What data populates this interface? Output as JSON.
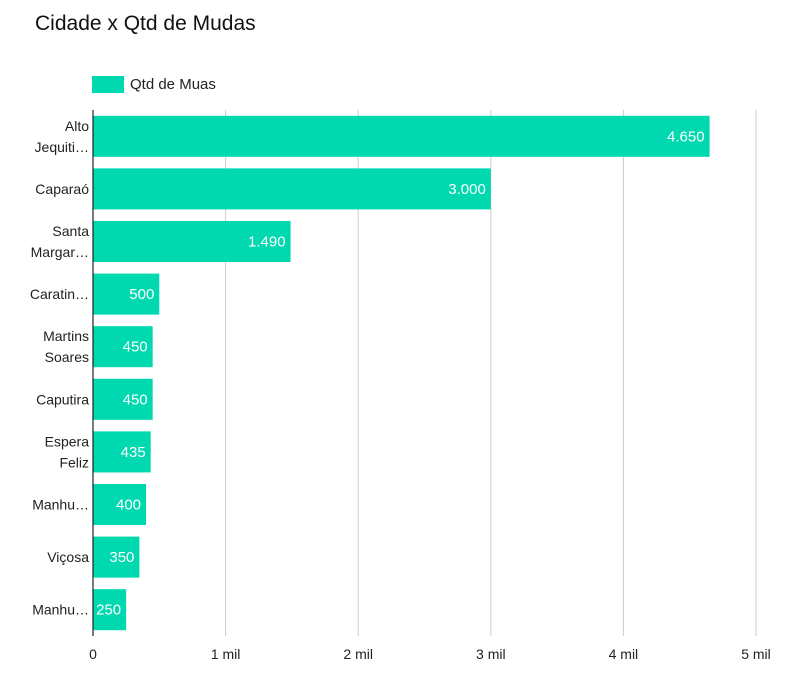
{
  "chart_data": {
    "type": "bar",
    "orientation": "horizontal",
    "title": "Cidade x Qtd de Mudas",
    "categories": [
      [
        "Alto",
        "Jequiti…"
      ],
      [
        "Caparaó"
      ],
      [
        "Santa",
        "Margar…"
      ],
      [
        "Caratin…"
      ],
      [
        "Martins",
        "Soares"
      ],
      [
        "Caputira"
      ],
      [
        "Espera",
        "Feliz"
      ],
      [
        "Manhu…"
      ],
      [
        "Viçosa"
      ],
      [
        "Manhu…"
      ]
    ],
    "series": [
      {
        "name": "Qtd de Muas",
        "color": "#00d9b0",
        "values": [
          4650,
          3000,
          1490,
          500,
          450,
          450,
          435,
          400,
          350,
          250
        ],
        "data_labels": [
          "4.650",
          "3.000",
          "1.490",
          "500",
          "450",
          "450",
          "435",
          "400",
          "350",
          "250"
        ]
      }
    ],
    "x_axis": {
      "range": [
        0,
        5000
      ],
      "ticks": [
        0,
        1000,
        2000,
        3000,
        4000,
        5000
      ],
      "tick_labels": [
        "0",
        "1 mil",
        "2 mil",
        "3 mil",
        "4 mil",
        "5 mil"
      ]
    },
    "grid": true,
    "legend": "top-left"
  },
  "colors": {
    "bar": "#00d9b0",
    "grid": "#cccccc",
    "axis": "#222222"
  }
}
